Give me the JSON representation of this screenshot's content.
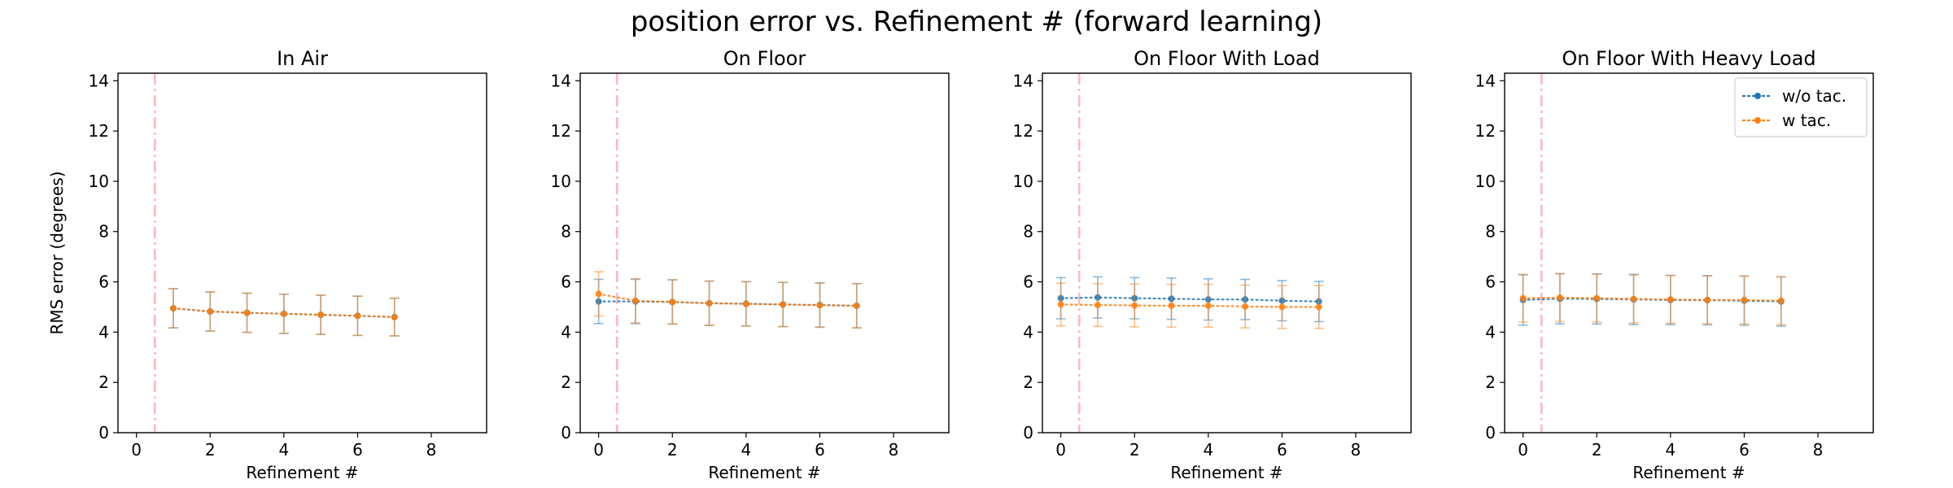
{
  "figure": {
    "suptitle": "position error vs. Refinement # (forward learning)"
  },
  "chart_data": [
    {
      "type": "line",
      "title": "In Air",
      "xlabel": "Refinement #",
      "ylabel": "RMS error (degrees)",
      "xlim": [
        -0.5,
        9.5
      ],
      "ylim": [
        0,
        14.3
      ],
      "xticks": [
        0,
        2,
        4,
        6,
        8
      ],
      "yticks": [
        0,
        2,
        4,
        6,
        8,
        10,
        12,
        14
      ],
      "vline_x": 0.5,
      "show_legend": false,
      "series": [
        {
          "key": "wo",
          "x": [
            1,
            2,
            3,
            4,
            5,
            6,
            7
          ],
          "y": [
            4.95,
            4.82,
            4.77,
            4.73,
            4.69,
            4.65,
            4.6
          ],
          "err": [
            0.78,
            0.78,
            0.78,
            0.78,
            0.78,
            0.78,
            0.75
          ]
        },
        {
          "key": "w",
          "x": [
            1,
            2,
            3,
            4,
            5,
            6,
            7
          ],
          "y": [
            4.95,
            4.82,
            4.77,
            4.73,
            4.69,
            4.65,
            4.6
          ],
          "err": [
            0.78,
            0.78,
            0.78,
            0.78,
            0.78,
            0.78,
            0.75
          ]
        }
      ]
    },
    {
      "type": "line",
      "title": "On Floor",
      "xlabel": "Refinement #",
      "ylabel": "",
      "xlim": [
        -0.5,
        9.5
      ],
      "ylim": [
        0,
        14.3
      ],
      "xticks": [
        0,
        2,
        4,
        6,
        8
      ],
      "yticks": [
        0,
        2,
        4,
        6,
        8,
        10,
        12,
        14
      ],
      "vline_x": 0.5,
      "show_legend": false,
      "series": [
        {
          "key": "wo",
          "x": [
            0,
            1,
            2,
            3,
            4,
            5,
            6,
            7
          ],
          "y": [
            5.22,
            5.22,
            5.2,
            5.15,
            5.13,
            5.1,
            5.08,
            5.05
          ],
          "err": [
            0.88,
            0.88,
            0.88,
            0.88,
            0.88,
            0.88,
            0.88,
            0.88
          ]
        },
        {
          "key": "w",
          "x": [
            0,
            1,
            2,
            3,
            4,
            5,
            6,
            7
          ],
          "y": [
            5.52,
            5.25,
            5.2,
            5.15,
            5.12,
            5.1,
            5.07,
            5.05
          ],
          "err": [
            0.88,
            0.88,
            0.88,
            0.88,
            0.88,
            0.88,
            0.88,
            0.88
          ]
        }
      ]
    },
    {
      "type": "line",
      "title": "On Floor With Load",
      "xlabel": "Refinement #",
      "ylabel": "",
      "xlim": [
        -0.5,
        9.5
      ],
      "ylim": [
        0,
        14.3
      ],
      "xticks": [
        0,
        2,
        4,
        6,
        8
      ],
      "yticks": [
        0,
        2,
        4,
        6,
        8,
        10,
        12,
        14
      ],
      "vline_x": 0.5,
      "show_legend": false,
      "series": [
        {
          "key": "wo",
          "x": [
            0,
            1,
            2,
            3,
            4,
            5,
            6,
            7
          ],
          "y": [
            5.35,
            5.38,
            5.35,
            5.33,
            5.3,
            5.3,
            5.25,
            5.22
          ],
          "err": [
            0.82,
            0.82,
            0.82,
            0.82,
            0.82,
            0.8,
            0.8,
            0.8
          ]
        },
        {
          "key": "w",
          "x": [
            0,
            1,
            2,
            3,
            4,
            5,
            6,
            7
          ],
          "y": [
            5.1,
            5.08,
            5.06,
            5.05,
            5.05,
            5.02,
            5.0,
            5.0
          ],
          "err": [
            0.85,
            0.85,
            0.85,
            0.85,
            0.85,
            0.85,
            0.85,
            0.85
          ]
        }
      ]
    },
    {
      "type": "line",
      "title": "On Floor With Heavy Load",
      "xlabel": "Refinement #",
      "ylabel": "",
      "xlim": [
        -0.5,
        9.5
      ],
      "ylim": [
        0,
        14.3
      ],
      "xticks": [
        0,
        2,
        4,
        6,
        8
      ],
      "yticks": [
        0,
        2,
        4,
        6,
        8,
        10,
        12,
        14
      ],
      "vline_x": 0.5,
      "show_legend": true,
      "legend_loc": "top-right",
      "series": [
        {
          "key": "wo",
          "x": [
            0,
            1,
            2,
            3,
            4,
            5,
            6,
            7
          ],
          "y": [
            5.28,
            5.33,
            5.32,
            5.3,
            5.28,
            5.27,
            5.25,
            5.22
          ],
          "err": [
            1.0,
            1.0,
            1.0,
            1.0,
            0.98,
            0.98,
            0.98,
            0.98
          ]
        },
        {
          "key": "w",
          "x": [
            0,
            1,
            2,
            3,
            4,
            5,
            6,
            7
          ],
          "y": [
            5.35,
            5.37,
            5.35,
            5.32,
            5.3,
            5.28,
            5.28,
            5.25
          ],
          "err": [
            0.95,
            0.95,
            0.95,
            0.95,
            0.95,
            0.95,
            0.95,
            0.95
          ]
        }
      ]
    }
  ],
  "legend": {
    "entries": [
      {
        "key": "wo",
        "label": "w/o tac."
      },
      {
        "key": "w",
        "label": "w tac."
      }
    ]
  },
  "colors": {
    "wo": "#1f77b4",
    "w": "#ff7f0e",
    "vline": "#ffb6c1",
    "axis": "#000000"
  }
}
